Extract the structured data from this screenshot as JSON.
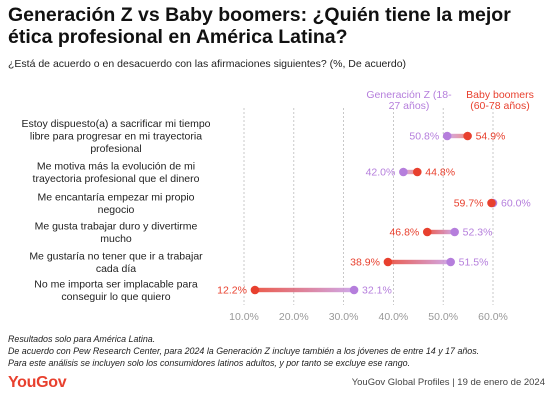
{
  "title": "Generación Z vs Baby boomers: ¿Quién tiene la mejor ética profesional en América Latina?",
  "subtitle": "¿Está de acuerdo o en desacuerdo con las afirmaciones siguientes? (%, De acuerdo)",
  "colors": {
    "gen_z": "#b57edc",
    "boomers": "#e8402e",
    "grid": "#bbbbbb",
    "tick": "#999999"
  },
  "chart_data": {
    "type": "dumbbell",
    "xlim": [
      10,
      60
    ],
    "x_ticks": [
      "10.0%",
      "20.0%",
      "30.0%",
      "40.0%",
      "50.0%",
      "60.0%"
    ],
    "x_tick_values": [
      10,
      20,
      30,
      40,
      50,
      60
    ],
    "grid": "vertical dashed",
    "legend_placement": "top-right",
    "categories": [
      [
        "Estoy dispuesto(a) a sacrificar mi tiempo",
        "libre para progresar en mi trayectoria",
        "profesional"
      ],
      [
        "Me motiva más la evolución de mi",
        "trayectoria profesional que el dinero"
      ],
      [
        "Me encantaría empezar mi propio",
        "negocio"
      ],
      [
        "Me gusta trabajar duro y divertirme",
        "mucho"
      ],
      [
        "Me gustaría no tener que ir a trabajar",
        "cada día"
      ],
      [
        "No me importa ser implacable para",
        "conseguir lo que quiero"
      ]
    ],
    "series": [
      {
        "name": [
          "Generación Z (18-",
          "27 años)"
        ],
        "values": [
          50.8,
          42.0,
          60.0,
          52.3,
          51.5,
          32.1
        ],
        "labels": [
          "50.8%",
          "42.0%",
          "60.0%",
          "52.3%",
          "51.5%",
          "32.1%"
        ]
      },
      {
        "name": [
          "Baby boomers",
          "(60-78 años)"
        ],
        "values": [
          54.9,
          44.8,
          59.7,
          46.8,
          38.9,
          12.2
        ],
        "labels": [
          "54.9%",
          "44.8%",
          "59.7%",
          "46.8%",
          "38.9%",
          "12.2%"
        ]
      }
    ]
  },
  "footnotes": [
    "Resultados solo para América Latina.",
    "De acuerdo con Pew Research Center, para 2024 la Generación Z incluye también a los jóvenes de entre 14 y 17 años.",
    "Para este análisis se incluyen solo los consumidores latinos adultos, y por tanto se excluye ese rango."
  ],
  "logo": "YouGov",
  "source": "YouGov Global Profiles | 19 de enero de 2024"
}
